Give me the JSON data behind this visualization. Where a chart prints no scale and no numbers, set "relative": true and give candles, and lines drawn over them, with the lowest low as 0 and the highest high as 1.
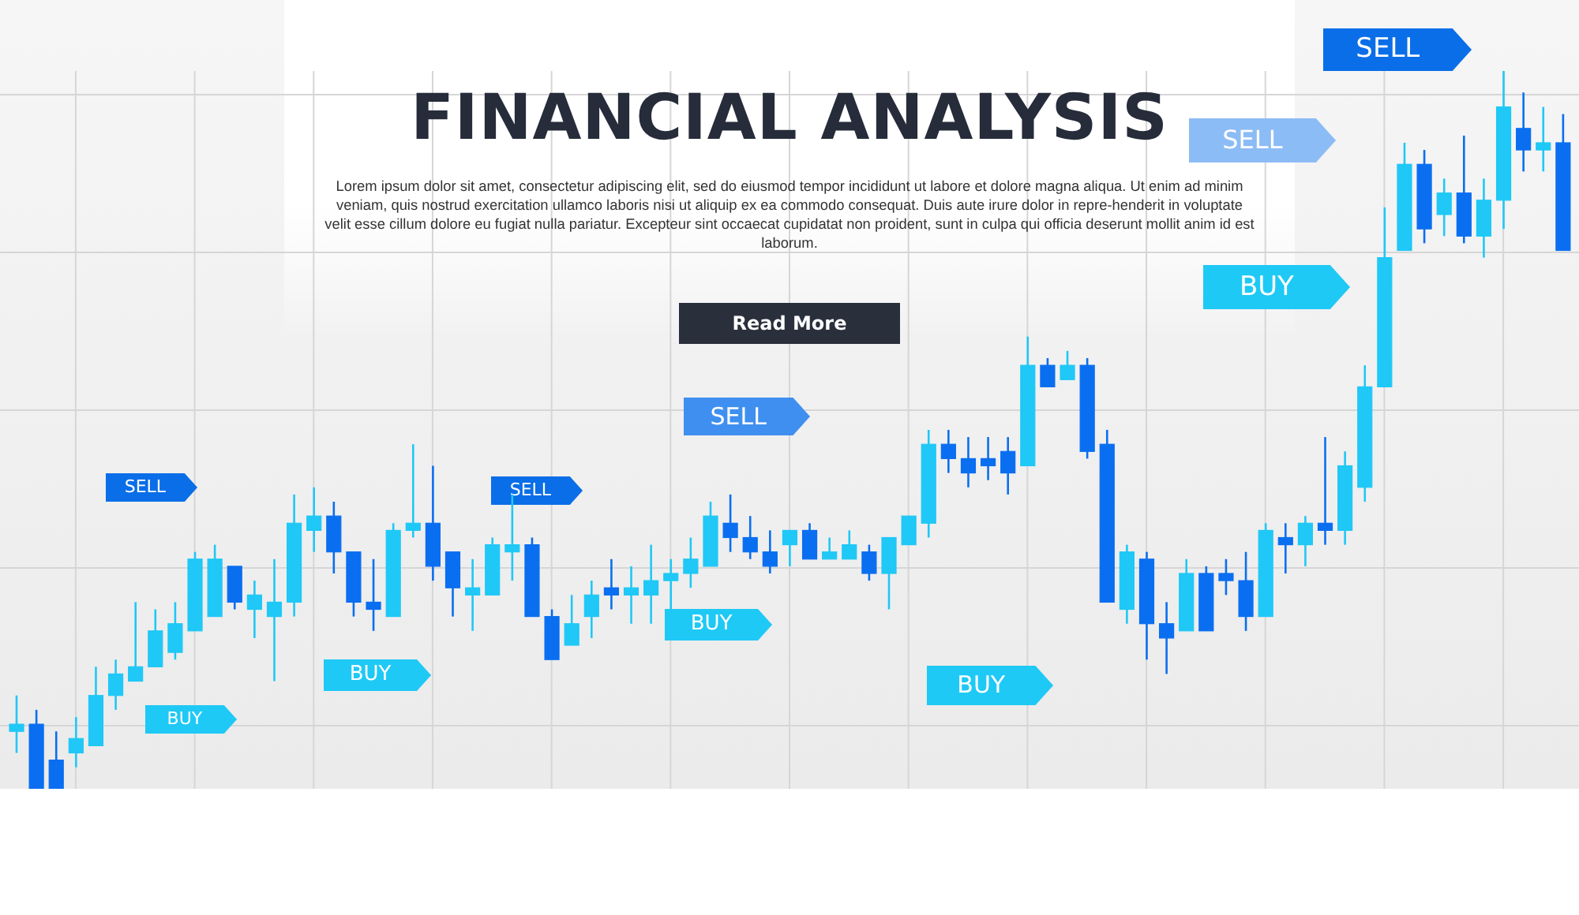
{
  "chart_data": {
    "type": "candlestick",
    "title": "FINANCIAL ANALYSIS",
    "subtitle": "Lorem ipsum dolor sit amet, consectetur adipiscing elit, sed do eiusmod tempor incididunt ut labore et dolore magna aliqua. Ut enim ad minim veniam, quis nostrud exercitation ullamco laboris nisi ut aliquip ex ea commodo consequat. Duis aute irure dolor in repre-henderit in voluptate velit esse cillum dolore eu fugiat nulla pariatur. Excepteur sint occaecat cupidatat non proident, sunt in culpa qui officia deserunt mollit anim id est laborum.",
    "annotations": [
      "Read More",
      "SELL",
      "BUY",
      "SELL",
      "BUY",
      "SELL",
      "BUY",
      "BUY",
      "BUY",
      "SELL",
      "SELL"
    ],
    "relative": true,
    "grid": true,
    "categories": [
      null,
      null,
      null,
      null,
      null,
      null,
      null,
      null,
      null,
      null,
      null,
      null,
      null,
      null,
      null,
      null,
      null,
      null,
      null,
      null,
      null,
      null,
      null,
      null,
      null,
      null,
      null,
      null,
      null,
      null,
      null,
      null,
      null,
      null,
      null,
      null,
      null,
      null,
      null,
      null,
      null,
      null,
      null,
      null,
      null,
      null,
      null,
      null,
      null,
      null,
      null,
      null,
      null,
      null,
      null,
      null,
      null,
      null,
      null,
      null,
      null,
      null,
      null,
      null,
      null,
      null,
      null,
      null,
      null,
      null,
      null,
      null,
      null,
      null,
      null,
      null,
      null,
      null,
      null
    ],
    "ohlc": [
      [
        0.08,
        0.13,
        0.05,
        0.09
      ],
      [
        0.09,
        0.11,
        0,
        0
      ],
      [
        0.04,
        0.08,
        0,
        0
      ],
      [
        0.05,
        0.1,
        0.03,
        0.07
      ],
      [
        0.06,
        0.17,
        0.06,
        0.13
      ],
      [
        0.13,
        0.18,
        0.11,
        0.16
      ],
      [
        0.15,
        0.26,
        0.15,
        0.17
      ],
      [
        0.17,
        0.25,
        0.17,
        0.22
      ],
      [
        0.19,
        0.26,
        0.18,
        0.23
      ],
      [
        0.22,
        0.33,
        0.22,
        0.32
      ],
      [
        0.24,
        0.34,
        0.24,
        0.32
      ],
      [
        0.31,
        0.31,
        0.25,
        0.26
      ],
      [
        0.25,
        0.29,
        0.21,
        0.27
      ],
      [
        0.24,
        0.32,
        0.15,
        0.26
      ],
      [
        0.26,
        0.41,
        0.24,
        0.37
      ],
      [
        0.36,
        0.42,
        0.33,
        0.38
      ],
      [
        0.38,
        0.4,
        0.3,
        0.33
      ],
      [
        0.33,
        0.33,
        0.24,
        0.26
      ],
      [
        0.26,
        0.32,
        0.22,
        0.25
      ],
      [
        0.24,
        0.37,
        0.24,
        0.36
      ],
      [
        0.36,
        0.48,
        0.35,
        0.37
      ],
      [
        0.37,
        0.45,
        0.29,
        0.31
      ],
      [
        0.33,
        0.33,
        0.24,
        0.28
      ],
      [
        0.27,
        0.32,
        0.22,
        0.28
      ],
      [
        0.27,
        0.35,
        0.27,
        0.34
      ],
      [
        0.33,
        0.41,
        0.29,
        0.34
      ],
      [
        0.34,
        0.35,
        0.24,
        0.24
      ],
      [
        0.24,
        0.25,
        0.18,
        0.18
      ],
      [
        0.2,
        0.27,
        0.2,
        0.23
      ],
      [
        0.24,
        0.29,
        0.21,
        0.27
      ],
      [
        0.28,
        0.32,
        0.25,
        0.27
      ],
      [
        0.27,
        0.31,
        0.23,
        0.28
      ],
      [
        0.27,
        0.34,
        0.23,
        0.29
      ],
      [
        0.29,
        0.32,
        0.25,
        0.3
      ],
      [
        0.3,
        0.35,
        0.28,
        0.32
      ],
      [
        0.31,
        0.4,
        0.31,
        0.38
      ],
      [
        0.37,
        0.41,
        0.33,
        0.35
      ],
      [
        0.35,
        0.38,
        0.32,
        0.33
      ],
      [
        0.33,
        0.36,
        0.3,
        0.31
      ],
      [
        0.34,
        0.36,
        0.31,
        0.36
      ],
      [
        0.36,
        0.37,
        0.32,
        0.32
      ],
      [
        0.32,
        0.35,
        0.32,
        0.33
      ],
      [
        0.32,
        0.36,
        0.32,
        0.34
      ],
      [
        0.33,
        0.34,
        0.29,
        0.3
      ],
      [
        0.3,
        0.35,
        0.25,
        0.35
      ],
      [
        0.34,
        0.38,
        0.34,
        0.38
      ],
      [
        0.37,
        0.5,
        0.35,
        0.48
      ],
      [
        0.48,
        0.5,
        0.44,
        0.46
      ],
      [
        0.46,
        0.49,
        0.42,
        0.44
      ],
      [
        0.46,
        0.49,
        0.43,
        0.45
      ],
      [
        0.47,
        0.49,
        0.41,
        0.44
      ],
      [
        0.45,
        0.63,
        0.45,
        0.59
      ],
      [
        0.59,
        0.6,
        0.56,
        0.56
      ],
      [
        0.57,
        0.61,
        0.57,
        0.59
      ],
      [
        0.59,
        0.6,
        0.46,
        0.47
      ],
      [
        0.48,
        0.5,
        0.26,
        0.26
      ],
      [
        0.25,
        0.34,
        0.23,
        0.33
      ],
      [
        0.32,
        0.33,
        0.18,
        0.23
      ],
      [
        0.23,
        0.26,
        0.16,
        0.21
      ],
      [
        0.22,
        0.32,
        0.22,
        0.3
      ],
      [
        0.3,
        0.31,
        0.22,
        0.22
      ],
      [
        0.3,
        0.32,
        0.27,
        0.29
      ],
      [
        0.29,
        0.33,
        0.22,
        0.24
      ],
      [
        0.24,
        0.37,
        0.24,
        0.36
      ],
      [
        0.35,
        0.37,
        0.3,
        0.34
      ],
      [
        0.34,
        0.38,
        0.31,
        0.37
      ],
      [
        0.37,
        0.49,
        0.34,
        0.36
      ],
      [
        0.36,
        0.47,
        0.34,
        0.45
      ],
      [
        0.42,
        0.59,
        0.4,
        0.56
      ],
      [
        0.56,
        0.81,
        0.56,
        0.74
      ],
      [
        0.75,
        0.9,
        0.75,
        0.87
      ],
      [
        0.87,
        0.89,
        0.76,
        0.78
      ],
      [
        0.8,
        0.85,
        0.77,
        0.83
      ],
      [
        0.83,
        0.91,
        0.76,
        0.77
      ],
      [
        0.77,
        0.85,
        0.74,
        0.82
      ],
      [
        0.82,
        1,
        0.78,
        0.95
      ],
      [
        0.92,
        0.97,
        0.86,
        0.89
      ],
      [
        0.89,
        0.95,
        0.86,
        0.9
      ],
      [
        0.9,
        0.94,
        0.75,
        0.75
      ]
    ],
    "colors": [
      "#1fc8f6",
      "#0a6ef0",
      "#0a6ef0",
      "#1fc8f6",
      "#1fc8f6",
      "#1fc8f6",
      "#1fc8f6",
      "#1fc8f6",
      "#1fc8f6",
      "#1fc8f6",
      "#1fc8f6",
      "#0a6ef0",
      "#1fc8f6",
      "#1fc8f6",
      "#1fc8f6",
      "#1fc8f6",
      "#0a6ef0",
      "#0a6ef0",
      "#0a6ef0",
      "#1fc8f6",
      "#1fc8f6",
      "#0a6ef0",
      "#0a6ef0",
      "#1fc8f6",
      "#1fc8f6",
      "#1fc8f6",
      "#0a6ef0",
      "#0a6ef0",
      "#1fc8f6",
      "#1fc8f6",
      "#0a6ef0",
      "#1fc8f6",
      "#1fc8f6",
      "#1fc8f6",
      "#1fc8f6",
      "#1fc8f6",
      "#0a6ef0",
      "#0a6ef0",
      "#0a6ef0",
      "#1fc8f6",
      "#0a6ef0",
      "#1fc8f6",
      "#1fc8f6",
      "#0a6ef0",
      "#1fc8f6",
      "#1fc8f6",
      "#1fc8f6",
      "#0a6ef0",
      "#0a6ef0",
      "#0a6ef0",
      "#0a6ef0",
      "#1fc8f6",
      "#0a6ef0",
      "#1fc8f6",
      "#0a6ef0",
      "#0a6ef0",
      "#1fc8f6",
      "#0a6ef0",
      "#0a6ef0",
      "#1fc8f6",
      "#0a6ef0",
      "#0a6ef0",
      "#0a6ef0",
      "#1fc8f6",
      "#0a6ef0",
      "#1fc8f6",
      "#0a6ef0",
      "#1fc8f6",
      "#1fc8f6",
      "#1fc8f6",
      "#1fc8f6",
      "#0a6ef0",
      "#1fc8f6",
      "#0a6ef0",
      "#1fc8f6",
      "#1fc8f6",
      "#0a6ef0",
      "#1fc8f6",
      "#0a6ef0"
    ]
  }
}
